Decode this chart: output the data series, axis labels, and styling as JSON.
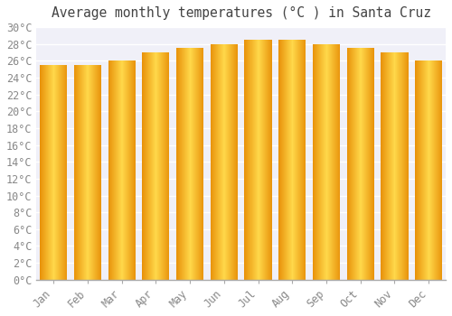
{
  "title": "Average monthly temperatures (°C ) in Santa Cruz",
  "months": [
    "Jan",
    "Feb",
    "Mar",
    "Apr",
    "May",
    "Jun",
    "Jul",
    "Aug",
    "Sep",
    "Oct",
    "Nov",
    "Dec"
  ],
  "values": [
    25.5,
    25.5,
    26.0,
    27.0,
    27.5,
    28.0,
    28.5,
    28.5,
    28.0,
    27.5,
    27.0,
    26.0
  ],
  "ylim": [
    0,
    30
  ],
  "ytick_step": 2,
  "bar_color_left": "#E8920A",
  "bar_color_center": "#FFD84A",
  "bar_color_right": "#E8920A",
  "bar_edge_color": "#B87800",
  "background_color": "#ffffff",
  "plot_bg_color": "#f0f0f8",
  "grid_color": "#ffffff",
  "title_fontsize": 10.5,
  "tick_fontsize": 8.5,
  "font_family": "monospace"
}
